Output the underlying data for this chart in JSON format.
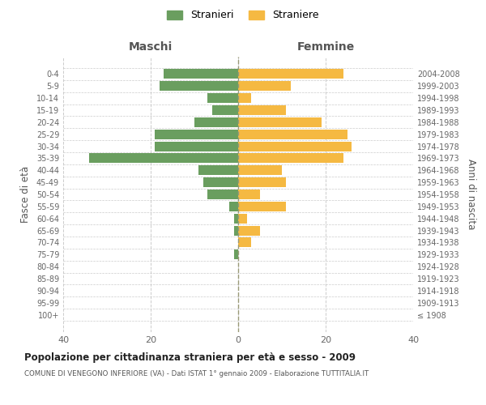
{
  "age_groups": [
    "100+",
    "95-99",
    "90-94",
    "85-89",
    "80-84",
    "75-79",
    "70-74",
    "65-69",
    "60-64",
    "55-59",
    "50-54",
    "45-49",
    "40-44",
    "35-39",
    "30-34",
    "25-29",
    "20-24",
    "15-19",
    "10-14",
    "5-9",
    "0-4"
  ],
  "birth_years": [
    "≤ 1908",
    "1909-1913",
    "1914-1918",
    "1919-1923",
    "1924-1928",
    "1929-1933",
    "1934-1938",
    "1939-1943",
    "1944-1948",
    "1949-1953",
    "1954-1958",
    "1959-1963",
    "1964-1968",
    "1969-1973",
    "1974-1978",
    "1979-1983",
    "1984-1988",
    "1989-1993",
    "1994-1998",
    "1999-2003",
    "2004-2008"
  ],
  "males": [
    0,
    0,
    0,
    0,
    0,
    1,
    0,
    1,
    1,
    2,
    7,
    8,
    9,
    34,
    19,
    19,
    10,
    6,
    7,
    18,
    17
  ],
  "females": [
    0,
    0,
    0,
    0,
    0,
    0,
    3,
    5,
    2,
    11,
    5,
    11,
    10,
    24,
    26,
    25,
    19,
    11,
    3,
    12,
    24
  ],
  "male_color": "#6a9e5f",
  "female_color": "#f5b942",
  "background_color": "#ffffff",
  "grid_color": "#cccccc",
  "title": "Popolazione per cittadinanza straniera per età e sesso - 2009",
  "subtitle": "COMUNE DI VENEGONO INFERIORE (VA) - Dati ISTAT 1° gennaio 2009 - Elaborazione TUTTITALIA.IT",
  "xlabel_left": "Maschi",
  "xlabel_right": "Femmine",
  "ylabel_left": "Fasce di età",
  "ylabel_right": "Anni di nascita",
  "legend_male": "Stranieri",
  "legend_female": "Straniere",
  "xlim": 40,
  "bar_height": 0.8
}
